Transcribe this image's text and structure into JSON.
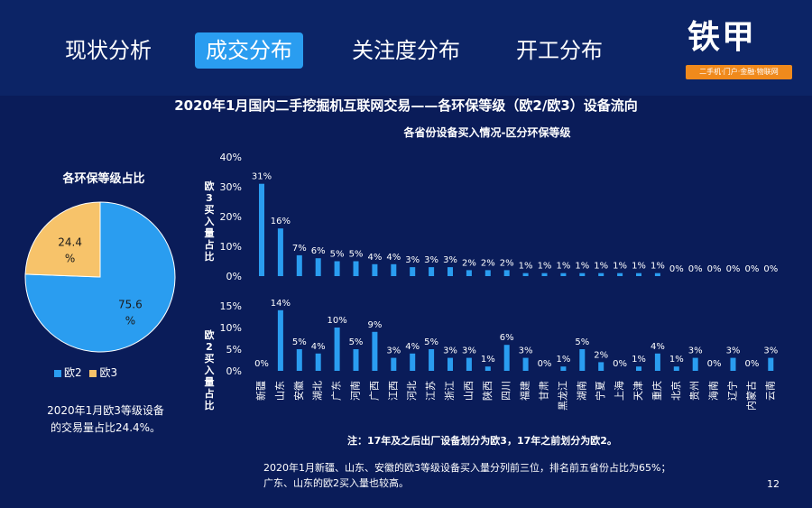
{
  "nav": {
    "tabs": [
      {
        "label": "现状分析",
        "active": false
      },
      {
        "label": "成交分布",
        "active": true
      },
      {
        "label": "关注度分布",
        "active": false
      },
      {
        "label": "开工分布",
        "active": false
      }
    ]
  },
  "logo": {
    "text": "铁甲",
    "tagline": "二手机·门户·金融·物联网"
  },
  "main_title": "2020年1月国内二手挖掘机互联网交易——各环保等级（欧2/欧3）设备流向",
  "chart_subtitle": "各省份设备买入情况-区分环保等级",
  "pie_title": "各环保等级占比",
  "pie_note_lines": [
    "2020年1月欧3等级设备",
    "的交易量占比24.4%。"
  ],
  "note": "注：17年及之后出厂设备划分为欧3，17年之前划分为欧2。",
  "footer_lines": [
    "2020年1月新疆、山东、安徽的欧3等级设备买入量分列前三位，排名前五省份占比为65%；",
    "广东、山东的欧2买入量也较高。"
  ],
  "page_number": "12",
  "colors": {
    "euro2": "#2a9df0",
    "euro3": "#f7c36a",
    "background": "#0a1c59"
  },
  "chart_data": [
    {
      "type": "pie",
      "title": "各环保等级占比",
      "legend_position": "bottom",
      "slices": [
        {
          "name": "欧2",
          "value": 75.6,
          "label": "75.6%"
        },
        {
          "name": "欧3",
          "value": 24.4,
          "label": "24.4%"
        }
      ]
    },
    {
      "type": "bar",
      "ylabel": "欧3买入量占比",
      "ylim": [
        0,
        40
      ],
      "yticks": [
        "0%",
        "10%",
        "20%",
        "30%",
        "40%"
      ],
      "grid": false,
      "categories": [
        "新疆",
        "山东",
        "安徽",
        "湖北",
        "广东",
        "河南",
        "广西",
        "江西",
        "河北",
        "江苏",
        "浙江",
        "山西",
        "陕西",
        "四川",
        "福建",
        "甘肃",
        "黑龙江",
        "湖南",
        "宁夏",
        "上海",
        "天津",
        "重庆",
        "北京",
        "贵州",
        "海南",
        "辽宁",
        "内蒙古",
        "云南"
      ],
      "values": [
        31,
        16,
        7,
        6,
        5,
        5,
        4,
        4,
        3,
        3,
        3,
        2,
        2,
        2,
        1,
        1,
        1,
        1,
        1,
        1,
        1,
        1,
        0,
        0,
        0,
        0,
        0,
        0
      ],
      "value_labels": [
        "31%",
        "16%",
        "7%",
        "6%",
        "5%",
        "5%",
        "4%",
        "4%",
        "3%",
        "3%",
        "3%",
        "2%",
        "2%",
        "2%",
        "1%",
        "1%",
        "1%",
        "1%",
        "1%",
        "1%",
        "1%",
        "1%",
        "0%",
        "0%",
        "0%",
        "0%",
        "0%",
        "0%"
      ]
    },
    {
      "type": "bar",
      "ylabel": "欧2买入量占比",
      "ylim": [
        0,
        15
      ],
      "yticks": [
        "0%",
        "5%",
        "10%",
        "15%"
      ],
      "grid": false,
      "categories": [
        "新疆",
        "山东",
        "安徽",
        "湖北",
        "广东",
        "河南",
        "广西",
        "江西",
        "河北",
        "江苏",
        "浙江",
        "山西",
        "陕西",
        "四川",
        "福建",
        "甘肃",
        "黑龙江",
        "湖南",
        "宁夏",
        "上海",
        "天津",
        "重庆",
        "北京",
        "贵州",
        "海南",
        "辽宁",
        "内蒙古",
        "云南"
      ],
      "values": [
        0,
        14,
        5,
        4,
        10,
        5,
        9,
        3,
        4,
        5,
        3,
        3,
        1,
        6,
        3,
        0,
        1,
        5,
        2,
        0,
        1,
        4,
        1,
        3,
        0,
        3,
        0,
        3
      ],
      "value_labels": [
        "0%",
        "14%",
        "5%",
        "4%",
        "10%",
        "5%",
        "9%",
        "3%",
        "4%",
        "5%",
        "3%",
        "3%",
        "1%",
        "6%",
        "3%",
        "0%",
        "1%",
        "5%",
        "2%",
        "0%",
        "1%",
        "4%",
        "1%",
        "3%",
        "0%",
        "3%",
        "0%",
        "3%"
      ]
    }
  ]
}
